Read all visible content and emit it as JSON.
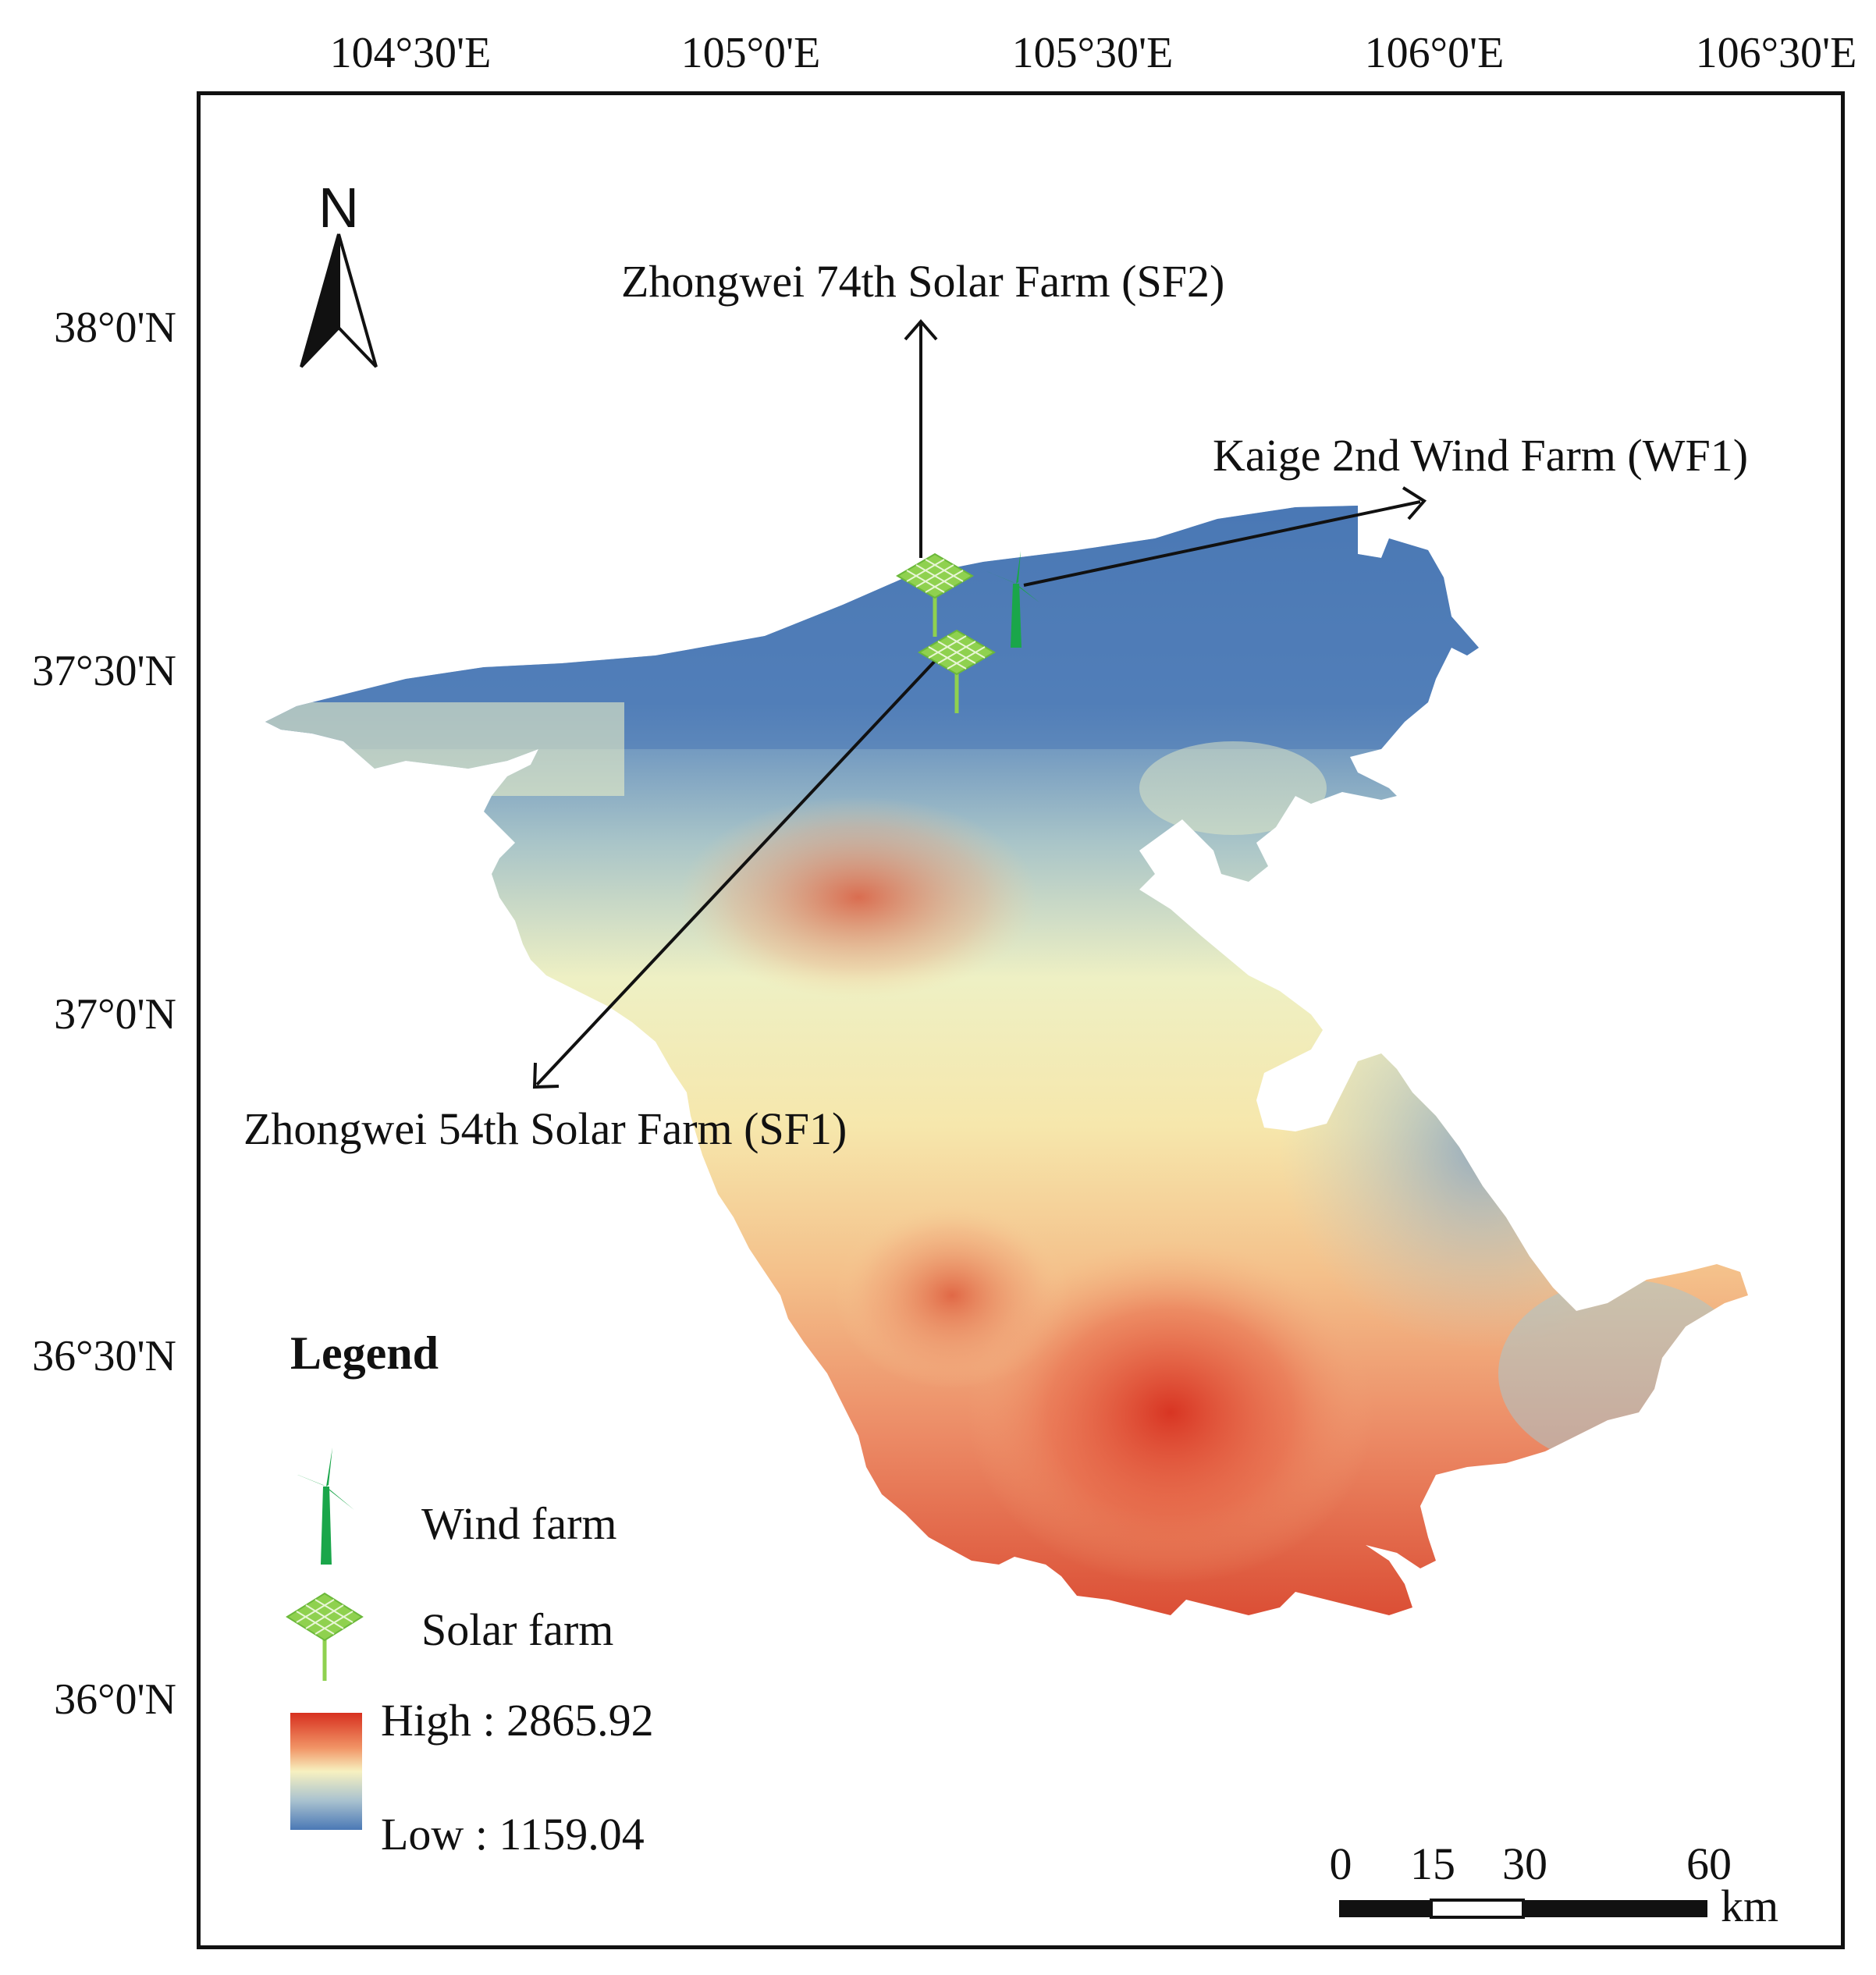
{
  "map": {
    "longitude_labels": [
      "104°30'E",
      "105°0'E",
      "105°30'E",
      "106°0'E",
      "106°30'E"
    ],
    "latitude_labels": [
      "38°0'N",
      "37°30'N",
      "37°0'N",
      "36°30'N",
      "36°0'N"
    ],
    "north_arrow": {
      "label": "N",
      "icon": "north-arrow-icon"
    },
    "callouts": {
      "sf2": "Zhongwei 74th Solar Farm (SF2)",
      "wf1": "Kaige 2nd Wind Farm (WF1)",
      "sf1": "Zhongwei 54th Solar Farm (SF1)"
    },
    "elevation_colors": {
      "high": "#d7301f",
      "mid": "#f7f1c0",
      "low": "#4a78b5"
    }
  },
  "legend": {
    "title": "Legend",
    "wind_farm": {
      "label": "Wind farm",
      "icon": "wind-turbine-icon",
      "color": "#1aa64a"
    },
    "solar_farm": {
      "label": "Solar farm",
      "icon": "solar-panel-icon",
      "color": "#8fd14f"
    },
    "high": "High : 2865.92",
    "low": "Low : 1159.04"
  },
  "scale_bar": {
    "ticks": [
      "0",
      "15",
      "30",
      "60"
    ],
    "unit": "km"
  }
}
